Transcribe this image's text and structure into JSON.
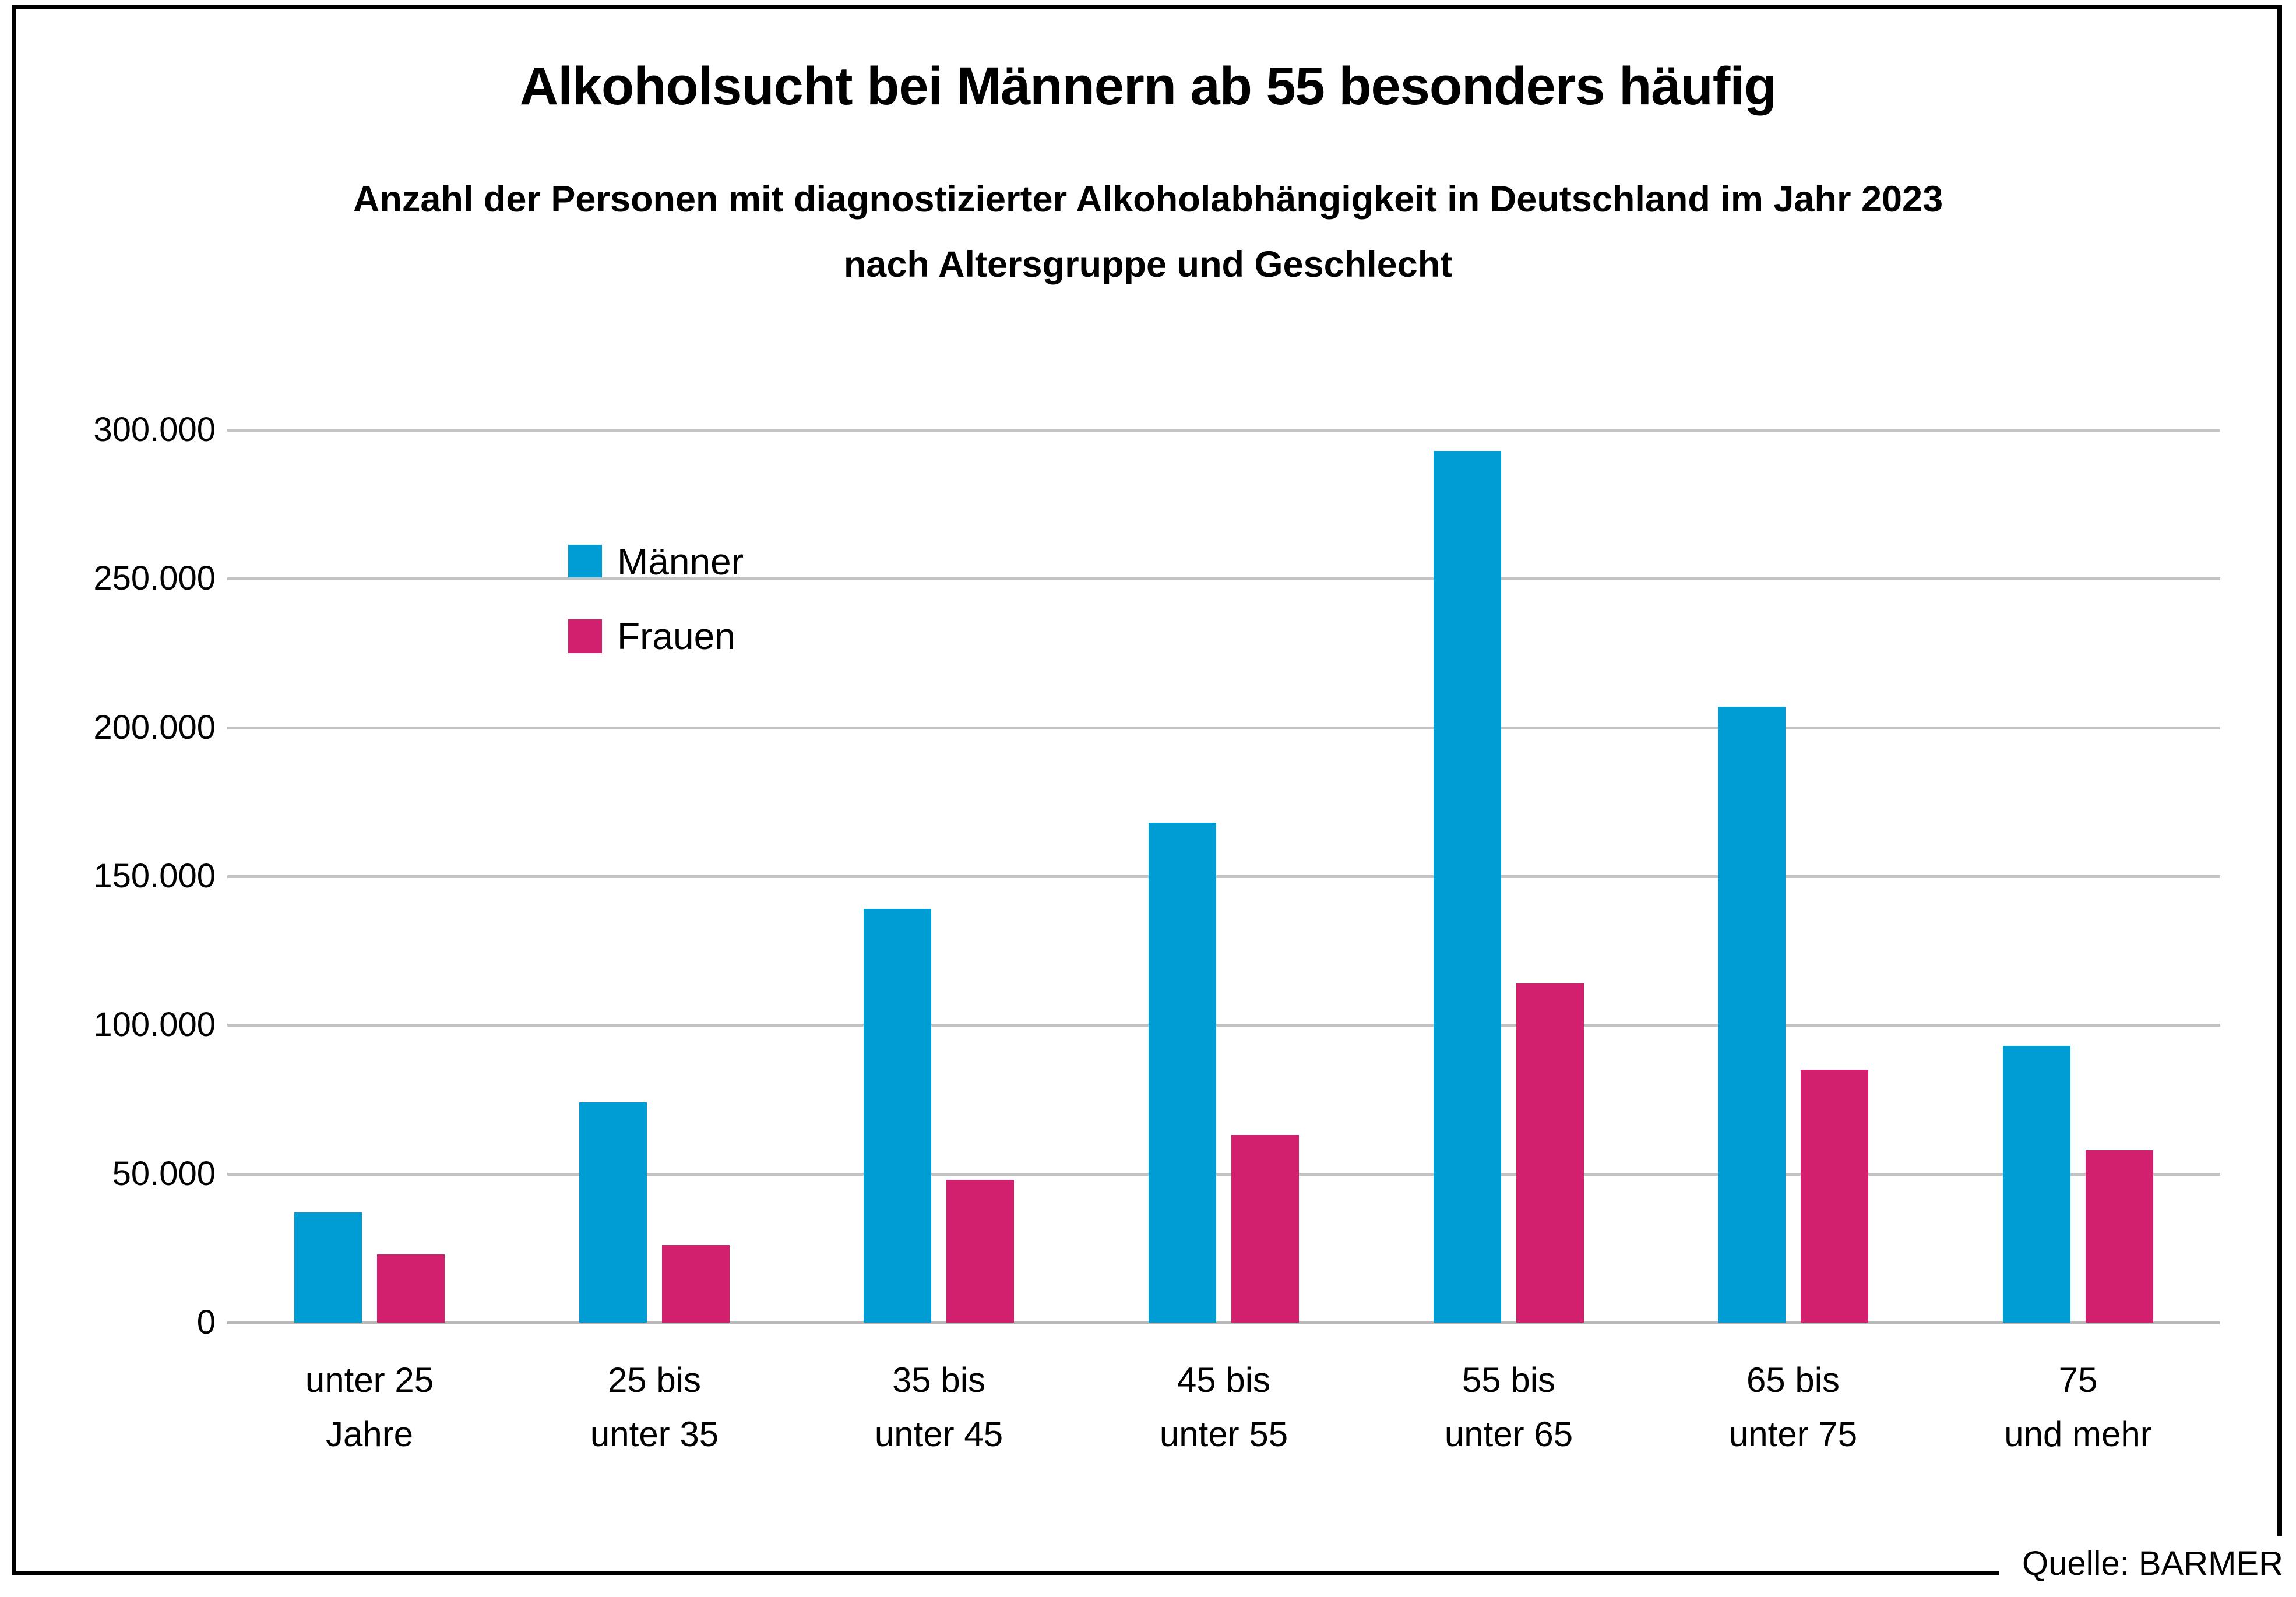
{
  "page": {
    "source_label": "Quelle: BARMER"
  },
  "chart_data": {
    "type": "bar",
    "title": "Alkoholsucht bei Männern ab 55 besonders häufig",
    "subtitle_lines": [
      "Anzahl der Personen mit diagnostizierter Alkoholabhängigkeit in Deutschland im Jahr 2023",
      "nach Altersgruppe und Geschlecht"
    ],
    "categories": [
      [
        "unter 25",
        "Jahre"
      ],
      [
        "25 bis",
        "unter 35"
      ],
      [
        "35 bis",
        "unter 45"
      ],
      [
        "45 bis",
        "unter 55"
      ],
      [
        "55 bis",
        "unter 65"
      ],
      [
        "65 bis",
        "unter 75"
      ],
      [
        "75",
        "und mehr"
      ]
    ],
    "series": [
      {
        "name": "Männer",
        "color": "#009dd4",
        "values": [
          37000,
          74000,
          139000,
          168000,
          293000,
          207000,
          93000
        ]
      },
      {
        "name": "Frauen",
        "color": "#d2206e",
        "values": [
          23000,
          26000,
          48000,
          63000,
          114000,
          85000,
          58000
        ]
      }
    ],
    "ylim": [
      0,
      300000
    ],
    "ytick_step": 50000,
    "ytick_labels": [
      "0",
      "50.000",
      "100.000",
      "150.000",
      "200.000",
      "250.000",
      "300.000"
    ],
    "grid": "horizontal",
    "legend_position": "upper-left-inside",
    "source": "Quelle: BARMER"
  }
}
